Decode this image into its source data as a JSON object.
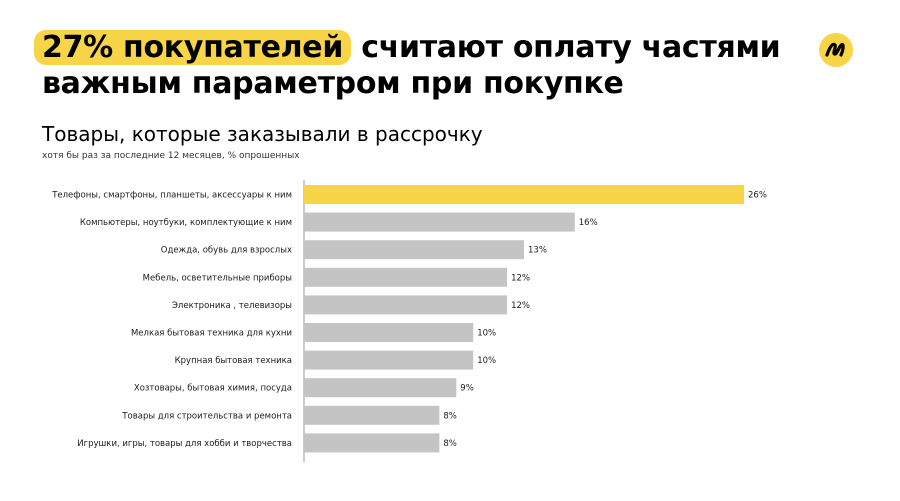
{
  "headline": {
    "highlight": "27% покупателей",
    "rest": " считают оплату частями важным параметром при покупке"
  },
  "colors": {
    "accent": "#f7d448",
    "bar_default": "#c4c4c4",
    "bar_highlight": "#f7d448"
  },
  "icons": {
    "logo": "yandex-split-logo-icon"
  },
  "chart_data": {
    "type": "bar",
    "orientation": "horizontal",
    "title": "Товары, которые заказывали в рассрочку",
    "subtitle": "хотя бы раз за последние 12 месяцев, % опрошенных",
    "categories": [
      "Телефоны, смартфоны, планшеты, аксессуары к ним",
      "Компьютеры, ноутбуки, комплектующие к ним",
      "Одежда, обувь для взрослых",
      "Мебель, осветительные приборы",
      "Электроника , телевизоры",
      "Мелкая бытовая техника для кухни",
      "Крупная бытовая техника",
      "Хозтовары, бытовая химия, посуда",
      "Товары для строительства и ремонта",
      "Игрушки, игры, товары для хобби и творчества"
    ],
    "values": [
      26,
      16,
      13,
      12,
      12,
      10,
      10,
      9,
      8,
      8
    ],
    "value_labels": [
      "26%",
      "16%",
      "13%",
      "12%",
      "12%",
      "10%",
      "10%",
      "9%",
      "8%",
      "8%"
    ],
    "highlight_index": 0,
    "xlim": [
      0,
      26
    ],
    "grid": false,
    "legend": "none"
  }
}
